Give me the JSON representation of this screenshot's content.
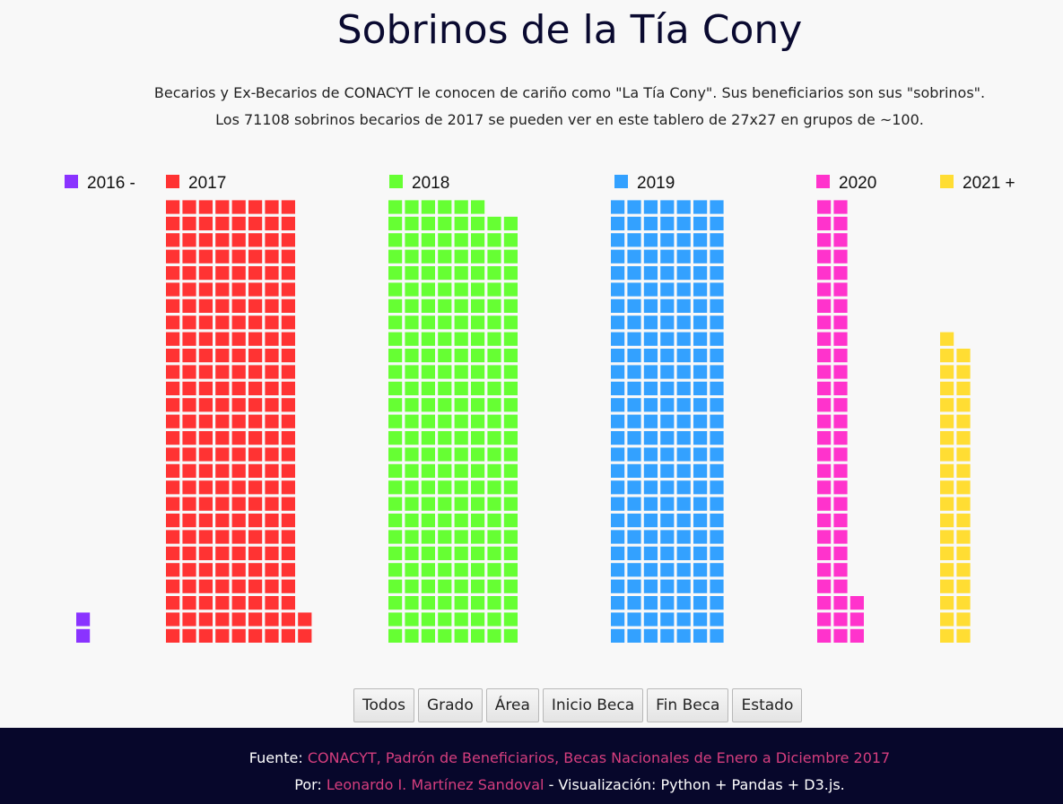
{
  "page": {
    "title": "Sobrinos de la Tía Cony",
    "subtitle_line1": "Becarios y Ex-Becarios de CONACYT le conocen de cariño como \"La Tía Cony\". Sus beneficiarios son sus \"sobrinos\".",
    "subtitle_line2": "Los 71108 sobrinos becarios de 2017 se pueden ver en este tablero de 27x27 en grupos de ~100."
  },
  "chart_data": {
    "type": "waffle",
    "unit": "~100 becarios por cuadro",
    "legend": [
      {
        "label": "2016 -",
        "color": "#8a33ff"
      },
      {
        "label": "2017",
        "color": "#ff3333"
      },
      {
        "label": "2018",
        "color": "#66ff33"
      },
      {
        "label": "2019",
        "color": "#33a1ff"
      },
      {
        "label": "2020",
        "color": "#ff33cc"
      },
      {
        "label": "2021 +",
        "color": "#ffdd33"
      }
    ],
    "series": [
      {
        "name": "2016 -",
        "color": "#8a33ff",
        "squares": 2
      },
      {
        "name": "2017",
        "color": "#ff3333",
        "squares": 218
      },
      {
        "name": "2018",
        "color": "#66ff33",
        "squares": 214
      },
      {
        "name": "2019",
        "color": "#33a1ff",
        "squares": 189
      },
      {
        "name": "2020",
        "color": "#ff33cc",
        "squares": 57
      },
      {
        "name": "2021 +",
        "color": "#ffdd33",
        "squares": 37
      }
    ]
  },
  "buttons": [
    "Todos",
    "Grado",
    "Área",
    "Inicio Beca",
    "Fin Beca",
    "Estado"
  ],
  "footer": {
    "source_label": "Fuente: ",
    "source_link": "CONACYT, Padrón de Beneficiarios, Becas Nacionales de Enero a Diciembre 2017",
    "author_label": "Por: ",
    "author_link": "Leonardo I. Martínez Sandoval",
    "author_suffix": " - Visualización: Python + Pandas + D3.js."
  }
}
